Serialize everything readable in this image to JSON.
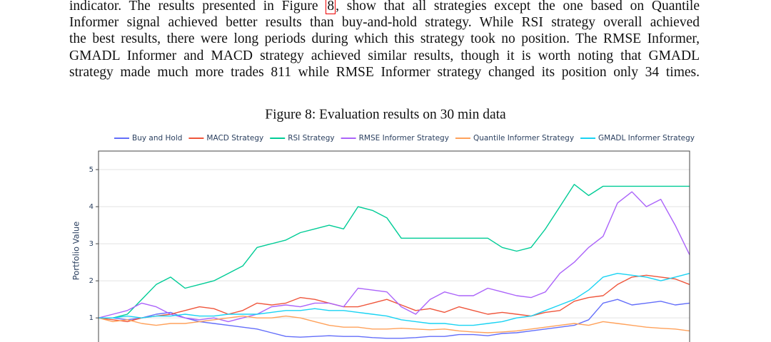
{
  "paragraph": {
    "lines": [
      {
        "before": "indicator. The results presented in Figure ",
        "ref": "8",
        "after": ", show that all strategies except the one based on Quantile"
      },
      "Informer signal achieved better results than buy-and-hold strategy. While RSI strategy overall achieved",
      "the best results, there were long periods during which this strategy took no position. The RMSE Informer,",
      "GMADL Informer and MACD strategy achieved similar results, though it is worth noting that GMADL",
      "strategy made much more trades 811 while RMSE Informer strategy changed its position only 34 times."
    ]
  },
  "chart_data": {
    "type": "line",
    "title": "Figure 8: Evaluation results on 30 min data",
    "y_label": "Portfolio Value",
    "ylim": [
      0.35,
      5.5
    ],
    "yticks": [
      1,
      2,
      3,
      4,
      5
    ],
    "grid": true,
    "legend": "top",
    "series": [
      {
        "name": "Buy and Hold",
        "color": "#636efa",
        "values": [
          1.0,
          1.0,
          0.95,
          1.0,
          1.1,
          1.15,
          1.0,
          0.9,
          0.85,
          0.8,
          0.75,
          0.7,
          0.6,
          0.5,
          0.48,
          0.5,
          0.52,
          0.5,
          0.5,
          0.47,
          0.45,
          0.45,
          0.47,
          0.5,
          0.5,
          0.55,
          0.55,
          0.52,
          0.58,
          0.6,
          0.65,
          0.7,
          0.75,
          0.8,
          0.95,
          1.4,
          1.5,
          1.35,
          1.4,
          1.45,
          1.35,
          1.4
        ]
      },
      {
        "name": "MACD Strategy",
        "color": "#ef553b",
        "values": [
          1.0,
          0.95,
          0.9,
          1.0,
          1.05,
          1.1,
          1.2,
          1.3,
          1.25,
          1.1,
          1.2,
          1.4,
          1.35,
          1.4,
          1.55,
          1.5,
          1.4,
          1.3,
          1.3,
          1.4,
          1.5,
          1.35,
          1.2,
          1.25,
          1.15,
          1.3,
          1.2,
          1.1,
          1.15,
          1.1,
          1.05,
          1.15,
          1.2,
          1.45,
          1.55,
          1.6,
          1.9,
          2.1,
          2.15,
          2.1,
          2.05,
          1.9
        ]
      },
      {
        "name": "RSI Strategy",
        "color": "#00cc96",
        "values": [
          1.0,
          1.0,
          1.1,
          1.5,
          1.9,
          2.1,
          1.8,
          1.9,
          2.0,
          2.2,
          2.4,
          2.9,
          3.0,
          3.1,
          3.3,
          3.4,
          3.5,
          3.4,
          4.0,
          3.9,
          3.7,
          3.15,
          3.15,
          3.15,
          3.15,
          3.15,
          3.15,
          3.15,
          2.9,
          2.8,
          2.9,
          3.4,
          4.0,
          4.6,
          4.3,
          4.55,
          4.55,
          4.55,
          4.55,
          4.55,
          4.55,
          4.55
        ]
      },
      {
        "name": "RMSE Informer Strategy",
        "color": "#ab63fa",
        "values": [
          1.0,
          1.1,
          1.2,
          1.4,
          1.3,
          1.1,
          1.0,
          0.95,
          1.0,
          0.9,
          1.0,
          1.1,
          1.3,
          1.35,
          1.3,
          1.4,
          1.4,
          1.3,
          1.8,
          1.75,
          1.7,
          1.3,
          1.1,
          1.5,
          1.7,
          1.6,
          1.6,
          1.8,
          1.7,
          1.6,
          1.55,
          1.7,
          2.2,
          2.5,
          2.9,
          3.2,
          4.1,
          4.4,
          4.0,
          4.2,
          3.5,
          2.7
        ]
      },
      {
        "name": "Quantile Informer Strategy",
        "color": "#ffa15a",
        "values": [
          1.0,
          0.9,
          0.95,
          0.85,
          0.8,
          0.85,
          0.85,
          0.9,
          0.95,
          1.0,
          1.05,
          1.0,
          1.0,
          1.05,
          1.0,
          0.9,
          0.8,
          0.75,
          0.75,
          0.7,
          0.7,
          0.72,
          0.7,
          0.68,
          0.7,
          0.65,
          0.62,
          0.6,
          0.62,
          0.65,
          0.7,
          0.75,
          0.8,
          0.85,
          0.8,
          0.9,
          0.85,
          0.8,
          0.75,
          0.72,
          0.7,
          0.65
        ]
      },
      {
        "name": "GMADL Informer Strategy",
        "color": "#19d3f3",
        "values": [
          1.0,
          1.0,
          1.05,
          1.0,
          1.05,
          1.05,
          1.1,
          1.05,
          1.05,
          1.1,
          1.1,
          1.1,
          1.15,
          1.2,
          1.2,
          1.25,
          1.2,
          1.2,
          1.15,
          1.1,
          1.05,
          0.95,
          0.9,
          0.85,
          0.85,
          0.8,
          0.8,
          0.85,
          0.9,
          1.0,
          1.05,
          1.2,
          1.35,
          1.5,
          1.75,
          2.1,
          2.2,
          2.15,
          2.1,
          2.0,
          2.1,
          2.2
        ]
      }
    ]
  }
}
